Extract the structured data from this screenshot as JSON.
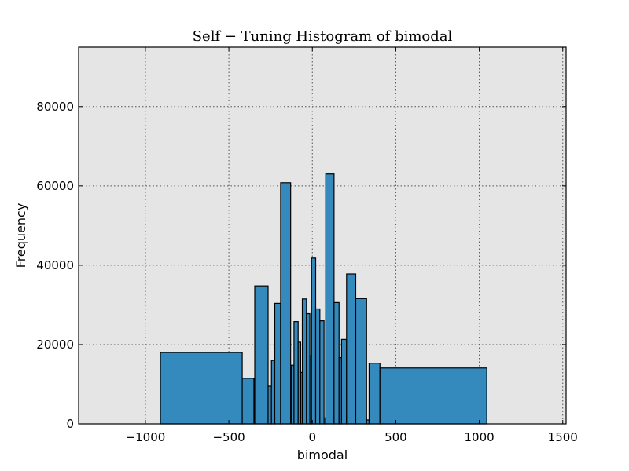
{
  "chart_data": {
    "type": "bar",
    "title": "Self − Tuning Histogram of bimodal",
    "xlabel": "bimodal",
    "ylabel": "Frequency",
    "xlim": [
      -1400,
      1520
    ],
    "ylim": [
      0,
      95000
    ],
    "grid": true,
    "xticks": [
      -1000,
      -500,
      0,
      500,
      1000,
      1500
    ],
    "xtick_labels": [
      "−1000",
      "−500",
      "0",
      "500",
      "1000",
      "1500"
    ],
    "yticks": [
      0,
      20000,
      40000,
      60000,
      80000
    ],
    "ytick_labels": [
      "0",
      "20000",
      "40000",
      "60000",
      "80000"
    ],
    "bins": [
      {
        "x0": -910,
        "x1": -420,
        "value": 18000
      },
      {
        "x0": -420,
        "x1": -350,
        "value": 11500
      },
      {
        "x0": -345,
        "x1": -265,
        "value": 34800
      },
      {
        "x0": -265,
        "x1": -245,
        "value": 9500
      },
      {
        "x0": -245,
        "x1": -225,
        "value": 16000
      },
      {
        "x0": -225,
        "x1": -190,
        "value": 30400
      },
      {
        "x0": -190,
        "x1": -130,
        "value": 60800
      },
      {
        "x0": -125,
        "x1": -110,
        "value": 14800
      },
      {
        "x0": -110,
        "x1": -85,
        "value": 25800
      },
      {
        "x0": -85,
        "x1": -70,
        "value": 20600
      },
      {
        "x0": -70,
        "x1": -60,
        "value": 13000
      },
      {
        "x0": -60,
        "x1": -35,
        "value": 31500
      },
      {
        "x0": -35,
        "x1": -15,
        "value": 27800
      },
      {
        "x0": -15,
        "x1": -5,
        "value": 17200
      },
      {
        "x0": -5,
        "x1": 20,
        "value": 41800
      },
      {
        "x0": 20,
        "x1": 45,
        "value": 29000
      },
      {
        "x0": 45,
        "x1": 70,
        "value": 26000
      },
      {
        "x0": 70,
        "x1": 80,
        "value": 1500
      },
      {
        "x0": 80,
        "x1": 130,
        "value": 63000
      },
      {
        "x0": 130,
        "x1": 160,
        "value": 30600
      },
      {
        "x0": 160,
        "x1": 175,
        "value": 16700
      },
      {
        "x0": 175,
        "x1": 205,
        "value": 21300
      },
      {
        "x0": 205,
        "x1": 260,
        "value": 37800
      },
      {
        "x0": 260,
        "x1": 325,
        "value": 31600
      },
      {
        "x0": 325,
        "x1": 340,
        "value": 1000
      },
      {
        "x0": 340,
        "x1": 405,
        "value": 15300
      },
      {
        "x0": 405,
        "x1": 1045,
        "value": 14100
      }
    ]
  }
}
